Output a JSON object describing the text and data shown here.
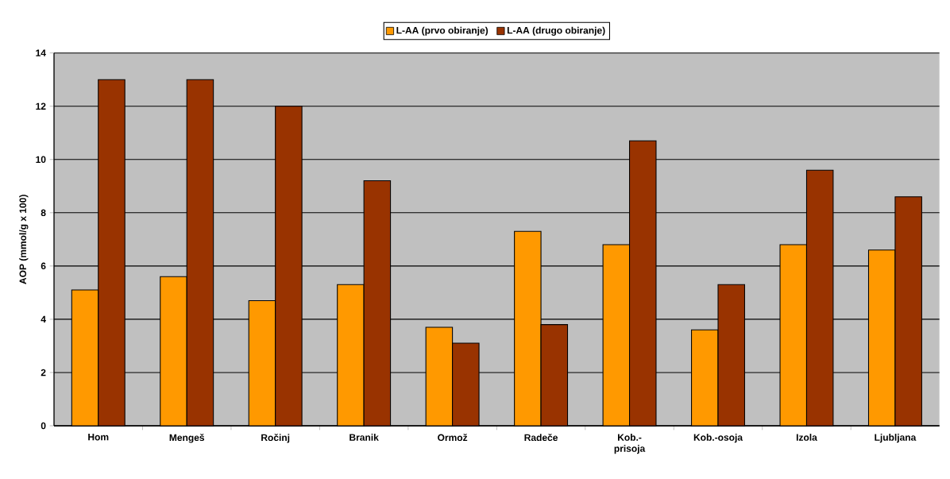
{
  "chart_data": {
    "type": "bar",
    "ylabel": "AOP (mmol/g x 100)",
    "categories": [
      "Hom",
      "Mengeš",
      "Ročinj",
      "Branik",
      "Ormož",
      "Radeče",
      "Kob.-prisoja",
      "Kob.-osoja",
      "Izola",
      "Ljubljana"
    ],
    "series": [
      {
        "name": "L-AA (prvo obiranje)",
        "color": "#ff9900",
        "values": [
          5.1,
          5.6,
          4.7,
          5.3,
          3.7,
          7.3,
          6.8,
          3.6,
          6.8,
          6.6
        ]
      },
      {
        "name": "L-AA (drugo obiranje)",
        "color": "#993300",
        "values": [
          13,
          13,
          12,
          9.2,
          3.1,
          3.8,
          10.7,
          5.3,
          9.6,
          8.6
        ]
      }
    ],
    "ylim": [
      0,
      14
    ],
    "yticks": [
      0,
      2,
      4,
      6,
      8,
      10,
      12,
      14
    ],
    "grid": "y",
    "legend": "top"
  }
}
